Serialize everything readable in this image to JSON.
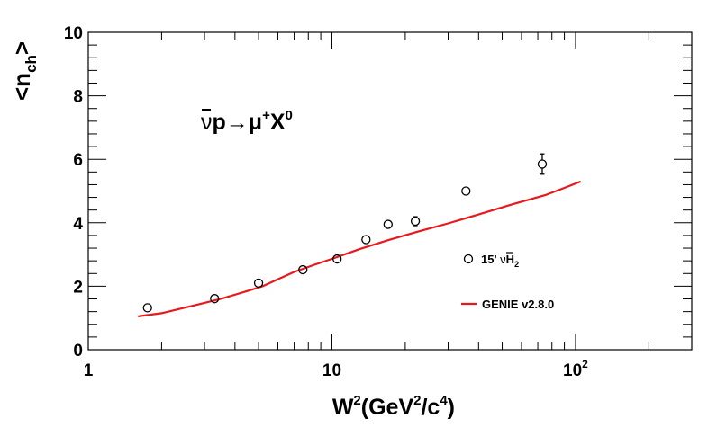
{
  "chart_data": {
    "type": "scatter",
    "xscale": "log",
    "xlim": [
      1,
      300
    ],
    "ylim": [
      0,
      10
    ],
    "x_ticks": [
      {
        "value": 1,
        "label": "1",
        "sup": ""
      },
      {
        "value": 10,
        "label": "10",
        "sup": ""
      },
      {
        "value": 100,
        "label": "10",
        "sup": "2"
      }
    ],
    "y_ticks": [
      {
        "value": 0,
        "label": "0"
      },
      {
        "value": 2,
        "label": "2"
      },
      {
        "value": 4,
        "label": "4"
      },
      {
        "value": 6,
        "label": "6"
      },
      {
        "value": 8,
        "label": "8"
      },
      {
        "value": 10,
        "label": "10"
      }
    ],
    "xlabel": {
      "base": "W",
      "sup1": "2",
      "mid": "(GeV",
      "sup2": "2",
      "mid2": "/c",
      "sup3": "4",
      "end": ")"
    },
    "ylabel": {
      "open": "<n",
      "sub": "ch",
      "close": ">"
    },
    "annotation": {
      "bar": "ν",
      "rest": "p→μ",
      "sup": "+",
      "tail": "X",
      "sup2": "0"
    },
    "grid": false,
    "legend_position": "right",
    "series": [
      {
        "name": "15' ν H₂",
        "name_parts": {
          "prefix": "15' ",
          "bar": "ν",
          "main": "H",
          "sub": "2"
        },
        "style": "open-circle",
        "color": "#000000",
        "points": [
          {
            "x": 1.75,
            "y": 1.32,
            "err": 0.12
          },
          {
            "x": 3.3,
            "y": 1.61,
            "err": 0.05
          },
          {
            "x": 5.0,
            "y": 2.1,
            "err": 0.05
          },
          {
            "x": 7.6,
            "y": 2.52,
            "err": 0.05
          },
          {
            "x": 10.5,
            "y": 2.86,
            "err": 0.05
          },
          {
            "x": 13.8,
            "y": 3.47,
            "err": 0.05
          },
          {
            "x": 17.0,
            "y": 3.95,
            "err": 0.1
          },
          {
            "x": 22.0,
            "y": 4.05,
            "err": 0.14
          },
          {
            "x": 35.5,
            "y": 5.0,
            "err": 0.12
          },
          {
            "x": 73.0,
            "y": 5.85,
            "err": 0.32
          }
        ]
      },
      {
        "name": "GENIE v2.8.0",
        "style": "line",
        "color": "#e8191d",
        "points": [
          {
            "x": 1.6,
            "y": 1.05
          },
          {
            "x": 2.0,
            "y": 1.15
          },
          {
            "x": 2.8,
            "y": 1.42
          },
          {
            "x": 3.5,
            "y": 1.6
          },
          {
            "x": 4.5,
            "y": 1.85
          },
          {
            "x": 5.2,
            "y": 2.0
          },
          {
            "x": 6.0,
            "y": 2.22
          },
          {
            "x": 7.0,
            "y": 2.45
          },
          {
            "x": 8.5,
            "y": 2.68
          },
          {
            "x": 10.0,
            "y": 2.86
          },
          {
            "x": 13.0,
            "y": 3.17
          },
          {
            "x": 17.0,
            "y": 3.45
          },
          {
            "x": 22.0,
            "y": 3.7
          },
          {
            "x": 30.0,
            "y": 3.98
          },
          {
            "x": 40.0,
            "y": 4.26
          },
          {
            "x": 55.0,
            "y": 4.58
          },
          {
            "x": 75.0,
            "y": 4.87
          },
          {
            "x": 90.0,
            "y": 5.1
          },
          {
            "x": 105.0,
            "y": 5.3
          }
        ]
      }
    ]
  }
}
